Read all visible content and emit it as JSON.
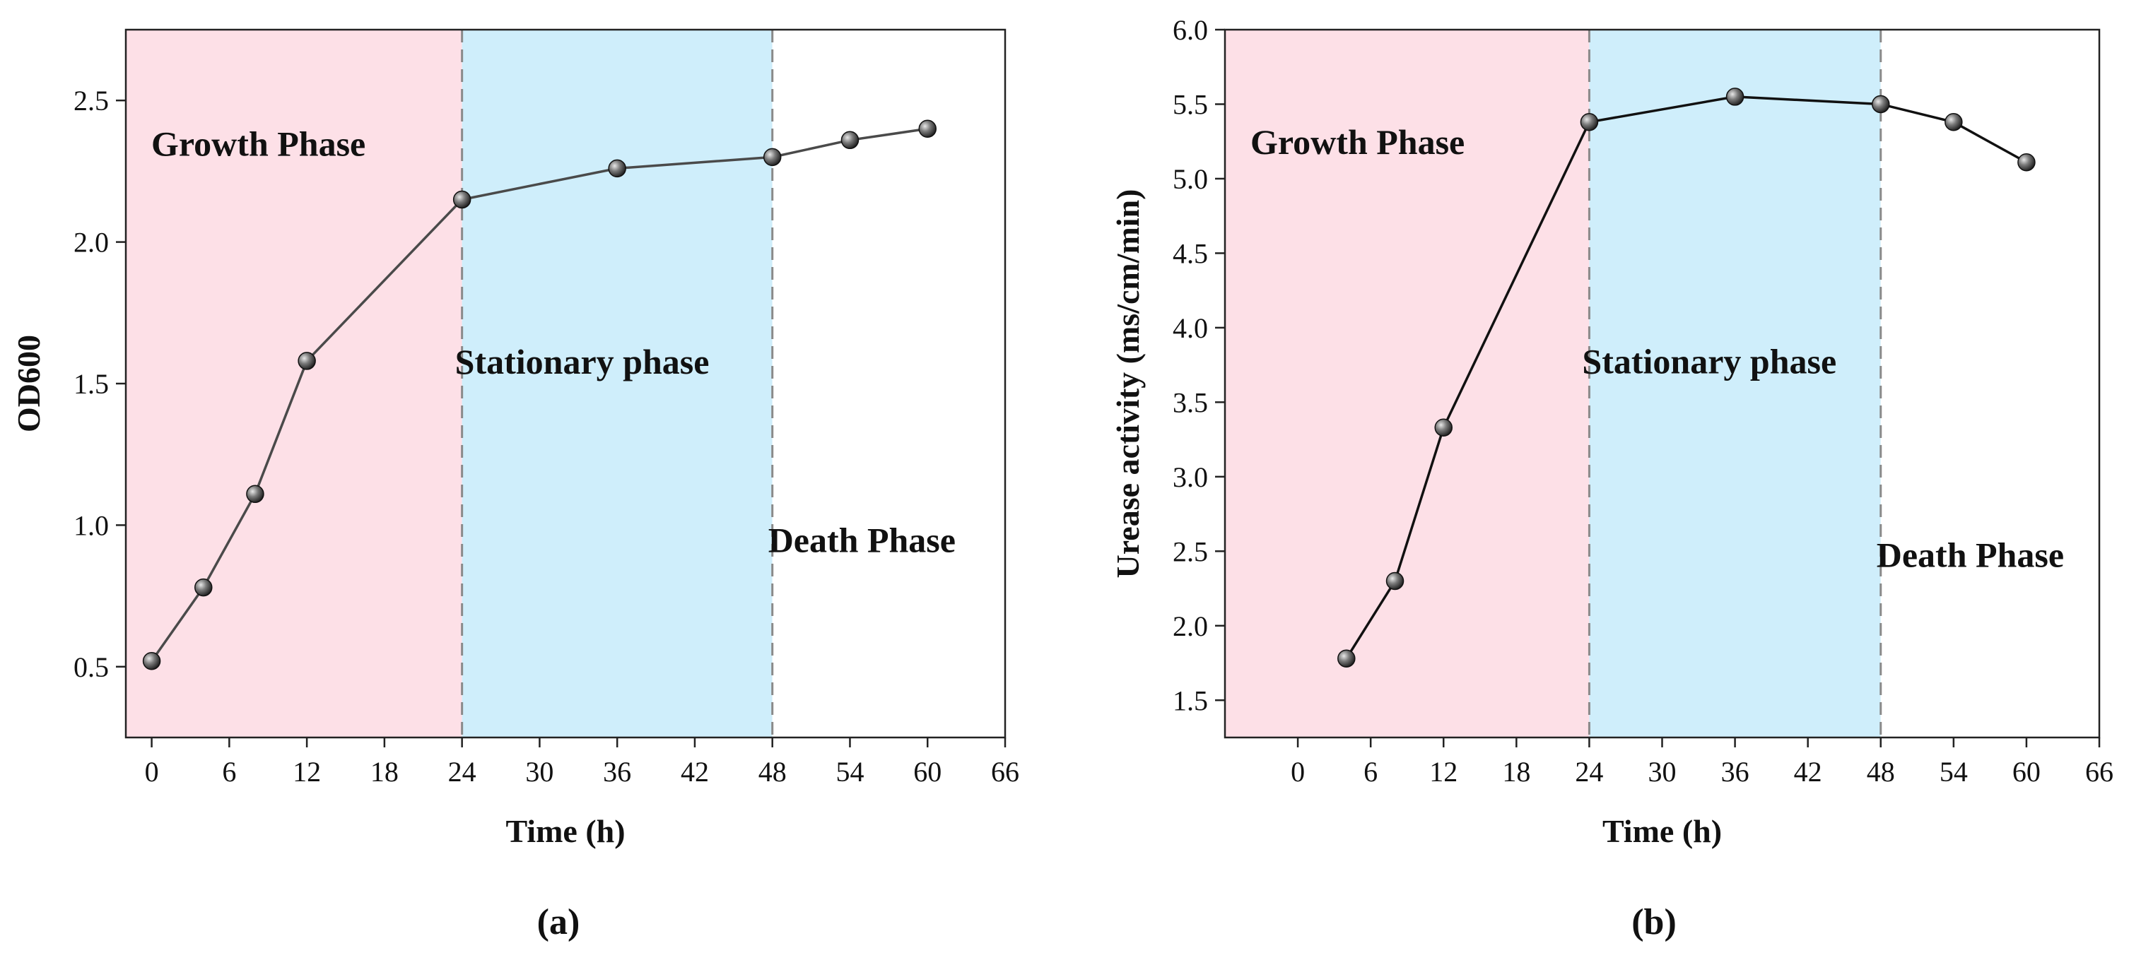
{
  "chart_data": [
    {
      "type": "line",
      "panel_label": "(a)",
      "xlabel": "Time (h)",
      "ylabel": "OD600",
      "xlim": [
        -2,
        66
      ],
      "ylim": [
        0.25,
        2.75
      ],
      "x_ticks": [
        0,
        6,
        12,
        18,
        24,
        30,
        36,
        42,
        48,
        54,
        60,
        66
      ],
      "y_ticks": [
        0.5,
        1.0,
        1.5,
        2.0,
        2.5
      ],
      "series": [
        {
          "name": "OD600",
          "x": [
            0,
            4,
            8,
            12,
            24,
            36,
            48,
            54,
            60
          ],
          "values": [
            0.52,
            0.78,
            1.11,
            1.58,
            2.15,
            2.26,
            2.3,
            2.36,
            2.4
          ]
        }
      ],
      "phases": [
        {
          "label": "Growth Phase",
          "x_start": -2,
          "x_end": 24,
          "color": "#fde0e7"
        },
        {
          "label": "Stationary phase",
          "x_start": 24,
          "x_end": 48,
          "color": "#cfeefb"
        },
        {
          "label": "Death Phase",
          "x_start": 48,
          "x_end": 66,
          "color": "#ffffff"
        }
      ],
      "phase_label_y": [
        2.35,
        1.58,
        0.95
      ],
      "boundaries": [
        24,
        48
      ]
    },
    {
      "type": "line",
      "panel_label": "(b)",
      "xlabel": "Time (h)",
      "ylabel": "Urease activity (ms/cm/min)",
      "xlim": [
        -6,
        66
      ],
      "ylim": [
        1.25,
        6.0
      ],
      "x_ticks": [
        0,
        6,
        12,
        18,
        24,
        30,
        36,
        42,
        48,
        54,
        60,
        66
      ],
      "y_ticks": [
        1.5,
        2.0,
        2.5,
        3.0,
        3.5,
        4.0,
        4.5,
        5.0,
        5.5,
        6.0
      ],
      "series": [
        {
          "name": "Urease activity",
          "x": [
            4,
            8,
            12,
            24,
            36,
            48,
            54,
            60
          ],
          "values": [
            1.78,
            2.3,
            3.33,
            5.38,
            5.55,
            5.5,
            5.38,
            5.11
          ]
        }
      ],
      "phases": [
        {
          "label": "Growth Phase",
          "x_start": -6,
          "x_end": 24,
          "color": "#fde0e7"
        },
        {
          "label": "Stationary phase",
          "x_start": 24,
          "x_end": 48,
          "color": "#cfeefb"
        },
        {
          "label": "Death Phase",
          "x_start": 48,
          "x_end": 66,
          "color": "#ffffff"
        }
      ],
      "phase_label_y": [
        5.25,
        3.78,
        2.48
      ],
      "boundaries": [
        24,
        48
      ]
    }
  ]
}
